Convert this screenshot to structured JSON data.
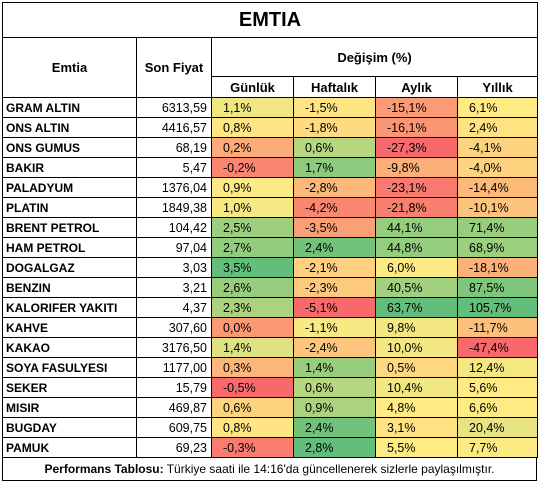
{
  "title": "EMTIA",
  "headers": {
    "commodity": "Emtia",
    "last_price": "Son Fiyat",
    "change": "Değişim (%)",
    "daily": "Günlük",
    "weekly": "Haftalık",
    "monthly": "Aylık",
    "yearly": "Yıllık"
  },
  "rows": [
    {
      "name": "GRAM ALTIN",
      "price": "6313,59",
      "d": "1,1%",
      "w": "-1,5%",
      "m": "-15,1%",
      "y": "6,1%"
    },
    {
      "name": "ONS ALTIN",
      "price": "4416,57",
      "d": "0,8%",
      "w": "-1,8%",
      "m": "-16,1%",
      "y": "2,4%"
    },
    {
      "name": "ONS GUMUS",
      "price": "68,19",
      "d": "0,2%",
      "w": "0,6%",
      "m": "-27,3%",
      "y": "-4,1%"
    },
    {
      "name": "BAKIR",
      "price": "5,47",
      "d": "-0,2%",
      "w": "1,7%",
      "m": "-9,8%",
      "y": "-4,0%"
    },
    {
      "name": "PALADYUM",
      "price": "1376,04",
      "d": "0,9%",
      "w": "-2,8%",
      "m": "-23,1%",
      "y": "-14,4%"
    },
    {
      "name": "PLATIN",
      "price": "1849,38",
      "d": "1,0%",
      "w": "-4,2%",
      "m": "-21,8%",
      "y": "-10,1%"
    },
    {
      "name": "BRENT PETROL",
      "price": "104,42",
      "d": "2,5%",
      "w": "-3,5%",
      "m": "44,1%",
      "y": "71,4%"
    },
    {
      "name": "HAM PETROL",
      "price": "97,04",
      "d": "2,7%",
      "w": "2,4%",
      "m": "44,8%",
      "y": "68,9%"
    },
    {
      "name": "DOGALGAZ",
      "price": "3,03",
      "d": "3,5%",
      "w": "-2,1%",
      "m": "6,0%",
      "y": "-18,1%"
    },
    {
      "name": "BENZIN",
      "price": "3,21",
      "d": "2,6%",
      "w": "-2,3%",
      "m": "40,5%",
      "y": "87,5%"
    },
    {
      "name": "KALORIFER YAKITI",
      "price": "4,37",
      "d": "2,3%",
      "w": "-5,1%",
      "m": "63,7%",
      "y": "105,7%"
    },
    {
      "name": "KAHVE",
      "price": "307,60",
      "d": "0,0%",
      "w": "-1,1%",
      "m": "9,8%",
      "y": "-11,7%"
    },
    {
      "name": "KAKAO",
      "price": "3176,50",
      "d": "1,4%",
      "w": "-2,4%",
      "m": "10,0%",
      "y": "-47,4%"
    },
    {
      "name": "SOYA FASULYESI",
      "price": "1177,00",
      "d": "0,3%",
      "w": "1,4%",
      "m": "0,5%",
      "y": "12,4%"
    },
    {
      "name": "SEKER",
      "price": "15,79",
      "d": "-0,5%",
      "w": "0,6%",
      "m": "10,4%",
      "y": "5,6%"
    },
    {
      "name": "MISIR",
      "price": "469,87",
      "d": "0,6%",
      "w": "0,9%",
      "m": "4,8%",
      "y": "6,6%"
    },
    {
      "name": "BUGDAY",
      "price": "609,75",
      "d": "0,8%",
      "w": "2,4%",
      "m": "3,1%",
      "y": "20,4%"
    },
    {
      "name": "PAMUK",
      "price": "69,23",
      "d": "-0,3%",
      "w": "2,8%",
      "m": "5,5%",
      "y": "7,7%"
    }
  ],
  "colors": {
    "strong_red": "#f8696b",
    "light_red": "#fba576",
    "orange": "#fdca7d",
    "yellow": "#ffeb84",
    "light_green": "#c1da81",
    "green": "#86c87e",
    "strong_green": "#63be7b"
  },
  "footer": {
    "bold": "Performans Tablosu:",
    "text": " Türkiye saati ile 14:16'da güncellenerek sizlerle paylaşılmıştır."
  }
}
